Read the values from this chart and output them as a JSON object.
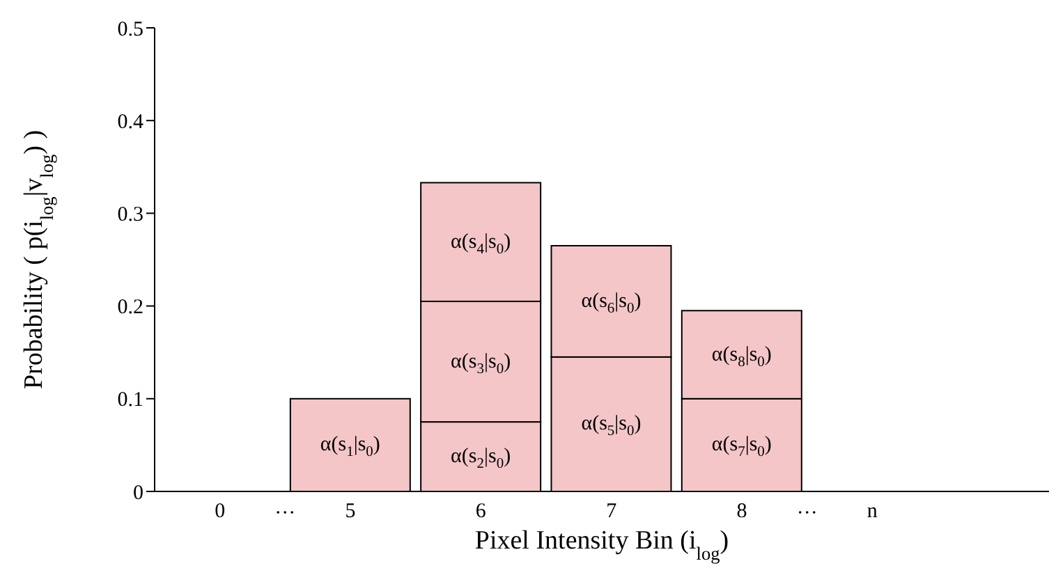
{
  "chart_data": {
    "type": "bar",
    "stacked": true,
    "xlabel": "Pixel Intensity Bin (i$_{log}$)",
    "ylabel": "Probability ( p(i$_{log}$|v$_{log}$) )",
    "categories": [
      "0",
      "5",
      "6",
      "7",
      "8",
      "n"
    ],
    "series": [
      {
        "color": "#f4c6c8",
        "values": [
          null,
          0.1,
          0.075,
          0.145,
          0.1,
          null
        ],
        "value_labels": [
          null,
          "α(s$_{1}$|s$_{0}$)",
          "α(s$_{2}$|s$_{0}$)",
          "α(s$_{5}$|s$_{0}$)",
          "α(s$_{7}$|s$_{0}$)",
          null
        ]
      },
      {
        "color": "#f4c6c8",
        "values": [
          null,
          null,
          0.13,
          0.12,
          0.095,
          null
        ],
        "value_labels": [
          null,
          null,
          "α(s$_{3}$|s$_{0}$)",
          "α(s$_{6}$|s$_{0}$)",
          "α(s$_{8}$|s$_{0}$)",
          null
        ]
      },
      {
        "color": "#f4c6c8",
        "values": [
          null,
          null,
          0.128,
          null,
          null,
          null
        ],
        "value_labels": [
          null,
          null,
          "α(s$_{4}$|s$_{0}$)",
          null,
          null,
          null
        ]
      }
    ],
    "ylim": [
      0,
      0.5
    ],
    "yticks": [
      0,
      0.1,
      0.2,
      0.3,
      0.4,
      0.5
    ],
    "grid": false,
    "legend": false,
    "annotations": [
      "···",
      "···"
    ]
  }
}
